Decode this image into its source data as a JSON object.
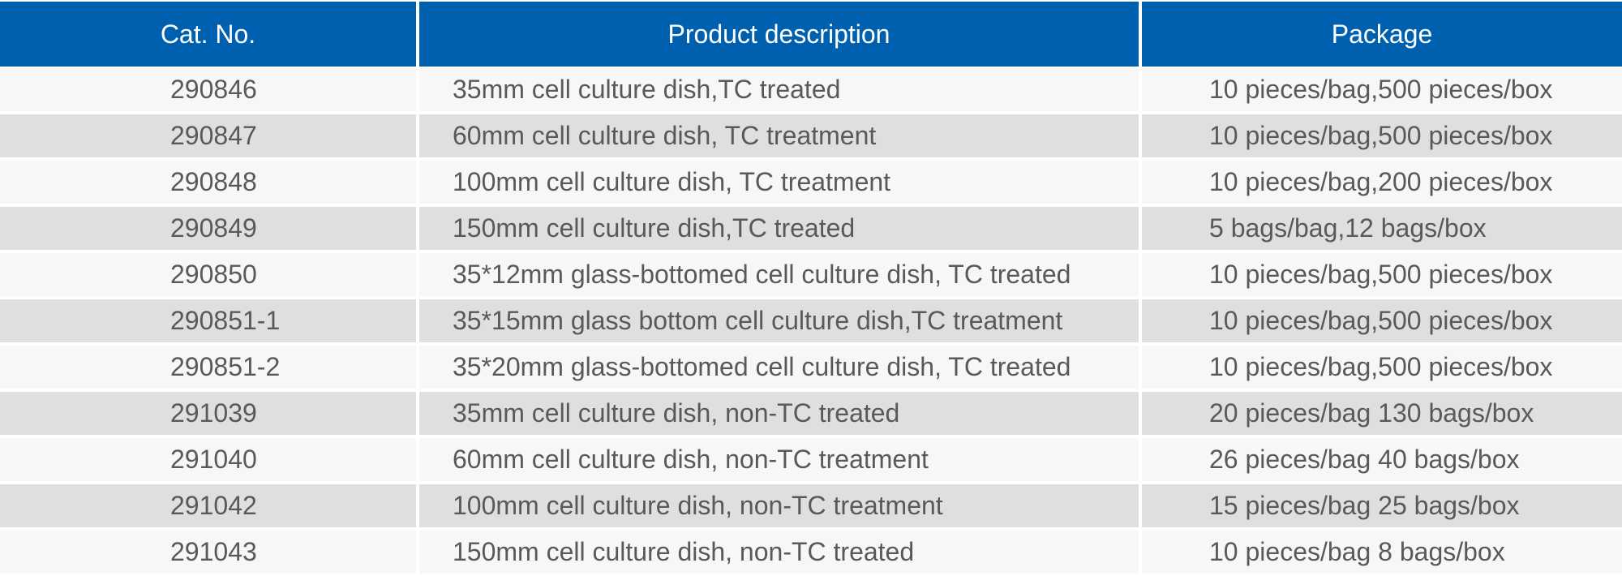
{
  "table": {
    "headers": [
      "Cat. No.",
      "Product description",
      "Package"
    ],
    "rows": [
      [
        "290846",
        "35mm cell culture dish,TC treated",
        "10 pieces/bag,500 pieces/box"
      ],
      [
        "290847",
        "60mm cell culture dish, TC treatment",
        "10 pieces/bag,500 pieces/box"
      ],
      [
        "290848",
        "100mm cell culture dish, TC treatment",
        "10 pieces/bag,200 pieces/box"
      ],
      [
        "290849",
        "150mm cell culture dish,TC treated",
        "5 bags/bag,12 bags/box"
      ],
      [
        "290850",
        "35*12mm glass-bottomed cell culture dish, TC treated",
        "10 pieces/bag,500 pieces/box"
      ],
      [
        "290851-1",
        "35*15mm glass bottom cell culture dish,TC treatment",
        "10 pieces/bag,500 pieces/box"
      ],
      [
        "290851-2",
        "35*20mm glass-bottomed cell culture dish, TC treated",
        "10 pieces/bag,500 pieces/box"
      ],
      [
        "291039",
        "35mm cell culture dish, non-TC treated",
        "20 pieces/bag 130 bags/box"
      ],
      [
        "291040",
        "60mm cell culture dish, non-TC treatment",
        "26 pieces/bag 40 bags/box"
      ],
      [
        "291042",
        "100mm cell culture dish, non-TC treatment",
        "15 pieces/bag 25 bags/box"
      ],
      [
        "291043",
        "150mm cell culture dish, non-TC treated",
        "10 pieces/bag 8 bags/box"
      ]
    ]
  },
  "colors": {
    "header_bg": "#0060b0",
    "header_text": "#ffffff",
    "row_light": "#f7f7f8",
    "row_dark": "#dedfe0",
    "body_text": "#595959"
  }
}
